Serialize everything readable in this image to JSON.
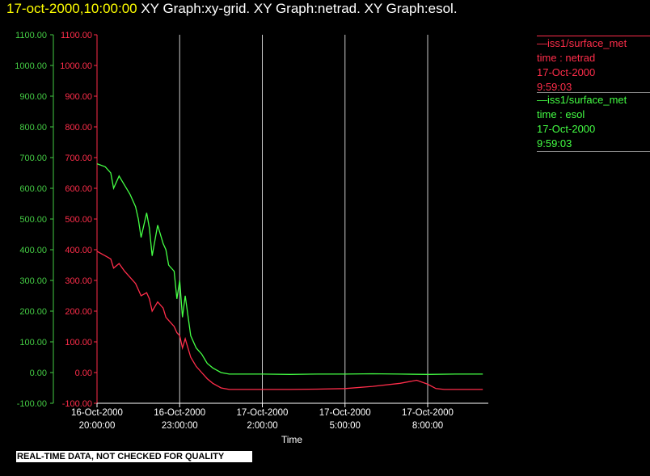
{
  "header": {
    "timestamp": "17-oct-2000,10:00:00",
    "graphs": " XY Graph:xy-grid.  XY Graph:netrad.  XY Graph:esol."
  },
  "legend": [
    {
      "source": "iss1/surface_met",
      "var": "time : netrad",
      "date": "17-Oct-2000",
      "time": "9:59:03",
      "color": "#ff2d4a"
    },
    {
      "source": "iss1/surface_met",
      "var": "time : esol",
      "date": "17-Oct-2000",
      "time": "9:59:03",
      "color": "#44ff44"
    }
  ],
  "notice": "REAL-TIME DATA, NOT CHECKED FOR QUALITY",
  "chart_data": {
    "type": "line",
    "xlabel": "Time",
    "x_ticks": [
      {
        "line1": "16-Oct-2000",
        "line2": "20:00:00",
        "h": 20
      },
      {
        "line1": "16-Oct-2000",
        "line2": "23:00:00",
        "h": 23
      },
      {
        "line1": "17-Oct-2000",
        "line2": "2:00:00",
        "h": 26
      },
      {
        "line1": "17-Oct-2000",
        "line2": "5:00:00",
        "h": 29
      },
      {
        "line1": "17-Oct-2000",
        "line2": "8:00:00",
        "h": 32
      }
    ],
    "xlim": [
      20,
      34.2
    ],
    "ylim": [
      -100,
      1100
    ],
    "y_ticks": [
      "-100.00",
      "0.00",
      "100.00",
      "200.00",
      "300.00",
      "400.00",
      "500.00",
      "600.00",
      "700.00",
      "800.00",
      "900.00",
      "1000.00",
      "1100.00"
    ],
    "vertical_gridlines_at_ticks": true,
    "series": [
      {
        "name": "esol",
        "color": "#44ff44",
        "axis_color": "#44cc44",
        "x": [
          20.0,
          20.3,
          20.5,
          20.6,
          20.8,
          21.0,
          21.2,
          21.4,
          21.5,
          21.6,
          21.8,
          21.9,
          22.0,
          22.2,
          22.4,
          22.5,
          22.6,
          22.8,
          22.9,
          23.0,
          23.1,
          23.2,
          23.4,
          23.6,
          23.8,
          24.0,
          24.2,
          24.5,
          24.8,
          25.0,
          25.5,
          26.0,
          27.0,
          28.0,
          29.0,
          30.0,
          31.0,
          32.0,
          33.0,
          34.0
        ],
        "y": [
          680,
          670,
          650,
          600,
          640,
          610,
          580,
          540,
          500,
          440,
          520,
          470,
          380,
          480,
          420,
          400,
          350,
          330,
          240,
          300,
          180,
          250,
          120,
          80,
          60,
          30,
          15,
          0,
          -5,
          -5,
          -5,
          -5,
          -6,
          -5,
          -5,
          -4,
          -5,
          -6,
          -5,
          -5
        ]
      },
      {
        "name": "netrad",
        "color": "#ff2d4a",
        "axis_color": "#ff2d4a",
        "x": [
          20.0,
          20.3,
          20.5,
          20.6,
          20.8,
          21.0,
          21.2,
          21.4,
          21.5,
          21.6,
          21.8,
          21.9,
          22.0,
          22.2,
          22.4,
          22.5,
          22.6,
          22.8,
          22.9,
          23.0,
          23.1,
          23.2,
          23.4,
          23.6,
          23.8,
          24.0,
          24.2,
          24.5,
          24.8,
          25.0,
          25.5,
          26.0,
          27.0,
          28.0,
          29.0,
          30.0,
          31.0,
          31.6,
          32.0,
          32.3,
          32.6,
          33.0,
          34.0
        ],
        "y": [
          395,
          380,
          370,
          340,
          355,
          330,
          310,
          290,
          270,
          250,
          260,
          240,
          200,
          230,
          210,
          180,
          170,
          150,
          130,
          120,
          80,
          110,
          50,
          20,
          0,
          -20,
          -35,
          -50,
          -55,
          -55,
          -55,
          -55,
          -55,
          -54,
          -52,
          -45,
          -35,
          -25,
          -38,
          -52,
          -55,
          -55,
          -55
        ]
      }
    ]
  }
}
